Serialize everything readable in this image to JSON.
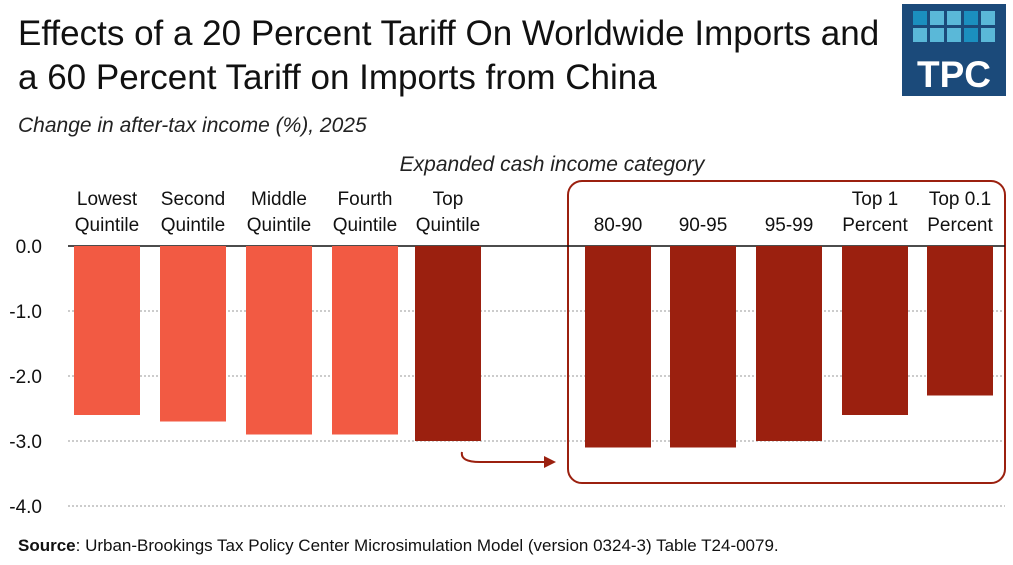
{
  "title": "Effects of a 20 Percent Tariff On Worldwide Imports and a 60 Percent Tariff on Imports from China",
  "subtitle": "Change in after-tax income (%), 2025",
  "logo": {
    "text": "TPC",
    "color": "#1b4a7a"
  },
  "source_label": "Source",
  "source_text": ": Urban-Brookings Tax Policy Center Microsimulation Model (version 0324-3) Table T24-0079.",
  "colors": {
    "quintile": "#f25a43",
    "top": "#9b200f",
    "highlight_box": "#9b200f",
    "grid": "#cccccc"
  },
  "chart_data": {
    "type": "bar",
    "xlabel": "Expanded cash income category",
    "ylabel": "",
    "ylim": [
      -4.0,
      0.0
    ],
    "yticks": [
      "0.0",
      "-1.0",
      "-2.0",
      "-3.0",
      "-4.0"
    ],
    "grid": true,
    "categories": [
      [
        "Lowest",
        "Quintile"
      ],
      [
        "Second",
        "Quintile"
      ],
      [
        "Middle",
        "Quintile"
      ],
      [
        "Fourth",
        "Quintile"
      ],
      [
        "Top",
        "Quintile"
      ],
      [
        "",
        "80-90"
      ],
      [
        "",
        "90-95"
      ],
      [
        "",
        "95-99"
      ],
      [
        "Top 1",
        "Percent"
      ],
      [
        "Top 0.1",
        "Percent"
      ]
    ],
    "values": [
      -2.6,
      -2.7,
      -2.9,
      -2.9,
      -3.0,
      -3.1,
      -3.1,
      -3.0,
      -2.6,
      -2.3
    ],
    "annotation": "Arrow from Top Quintile to highlighted breakdown of top quintile (80-90 through Top 0.1 Percent)"
  }
}
